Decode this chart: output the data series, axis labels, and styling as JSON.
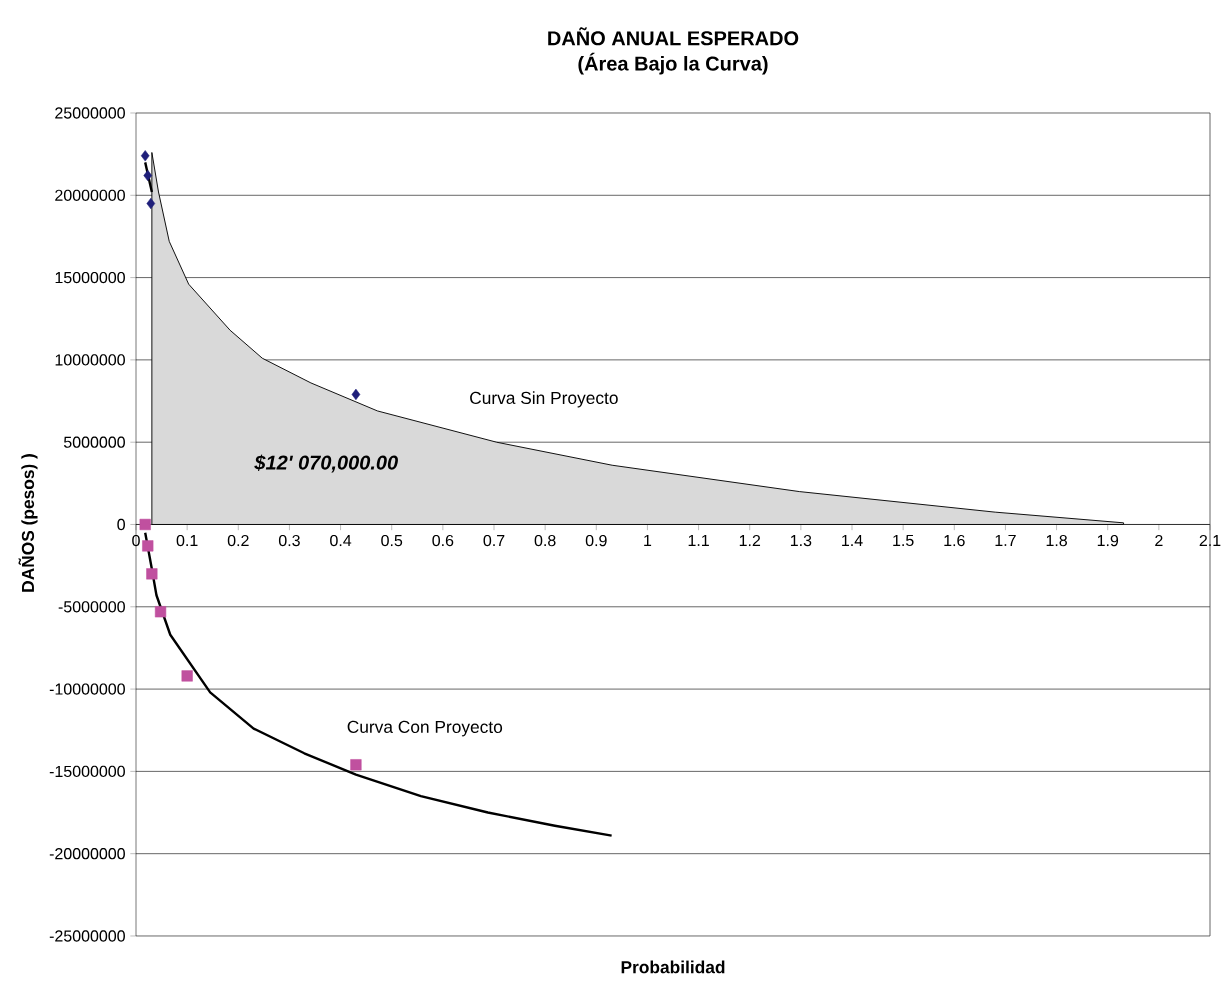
{
  "chart_data": {
    "type": "scatter",
    "title": "DAÑO ANUAL ESPERADO",
    "subtitle": "(Área Bajo la Curva)",
    "xlabel": "Probabilidad",
    "ylabel": "DAÑOS (pesos) )",
    "xlim": [
      0,
      2.1
    ],
    "ylim": [
      -25000000,
      25000000
    ],
    "xticks": [
      0,
      0.1,
      0.2,
      0.3,
      0.4,
      0.5,
      0.6,
      0.7,
      0.8,
      0.9,
      1,
      1.1,
      1.2,
      1.3,
      1.4,
      1.5,
      1.6,
      1.7,
      1.8,
      1.9,
      2,
      2.1
    ],
    "yticks": [
      -25000000,
      -20000000,
      -15000000,
      -10000000,
      -5000000,
      0,
      5000000,
      10000000,
      15000000,
      20000000,
      25000000
    ],
    "grid": "y",
    "series": [
      {
        "type": "area",
        "color": "#d9d9d9",
        "x": [
          0.031,
          0.044,
          0.065,
          0.103,
          0.184,
          0.247,
          0.342,
          0.472,
          0.705,
          0.931,
          1.297,
          1.68,
          1.931
        ],
        "values": [
          22600000,
          20200000,
          17200000,
          14600000,
          11800000,
          10100000,
          8600000,
          6900000,
          5000000,
          3600000,
          2000000,
          750000,
          100000
        ]
      },
      {
        "type": "line",
        "color": "#000000",
        "marker": "none",
        "x": [
          0.018,
          0.031
        ],
        "values": [
          22000000,
          20200000
        ]
      },
      {
        "type": "line",
        "color": "#000000",
        "marker": "none",
        "x": [
          0.018,
          0.031,
          0.04,
          0.067,
          0.145,
          0.23,
          0.329,
          0.43,
          0.557,
          0.688,
          0.819,
          0.93
        ],
        "values": [
          -500000,
          -2700000,
          -4300000,
          -6700000,
          -10200000,
          -12400000,
          -13900000,
          -15200000,
          -16500000,
          -17500000,
          -18300000,
          -18900000
        ]
      },
      {
        "color": "#1f1f7a",
        "marker": "diamond",
        "x": [
          0.018,
          0.023,
          0.029,
          0.43
        ],
        "values": [
          22400000,
          21200000,
          19500000,
          7900000
        ]
      },
      {
        "color": "#c0509f",
        "marker": "square",
        "x": [
          0.018,
          0.023,
          0.031,
          0.048,
          0.1,
          0.43
        ],
        "values": [
          0,
          -1300000,
          -3000000,
          -5300000,
          -9200000,
          -14600000
        ]
      }
    ],
    "annotations": [
      "Curva Sin Proyecto",
      "Curva Con Proyecto",
      "$12' 070,000.00"
    ]
  }
}
